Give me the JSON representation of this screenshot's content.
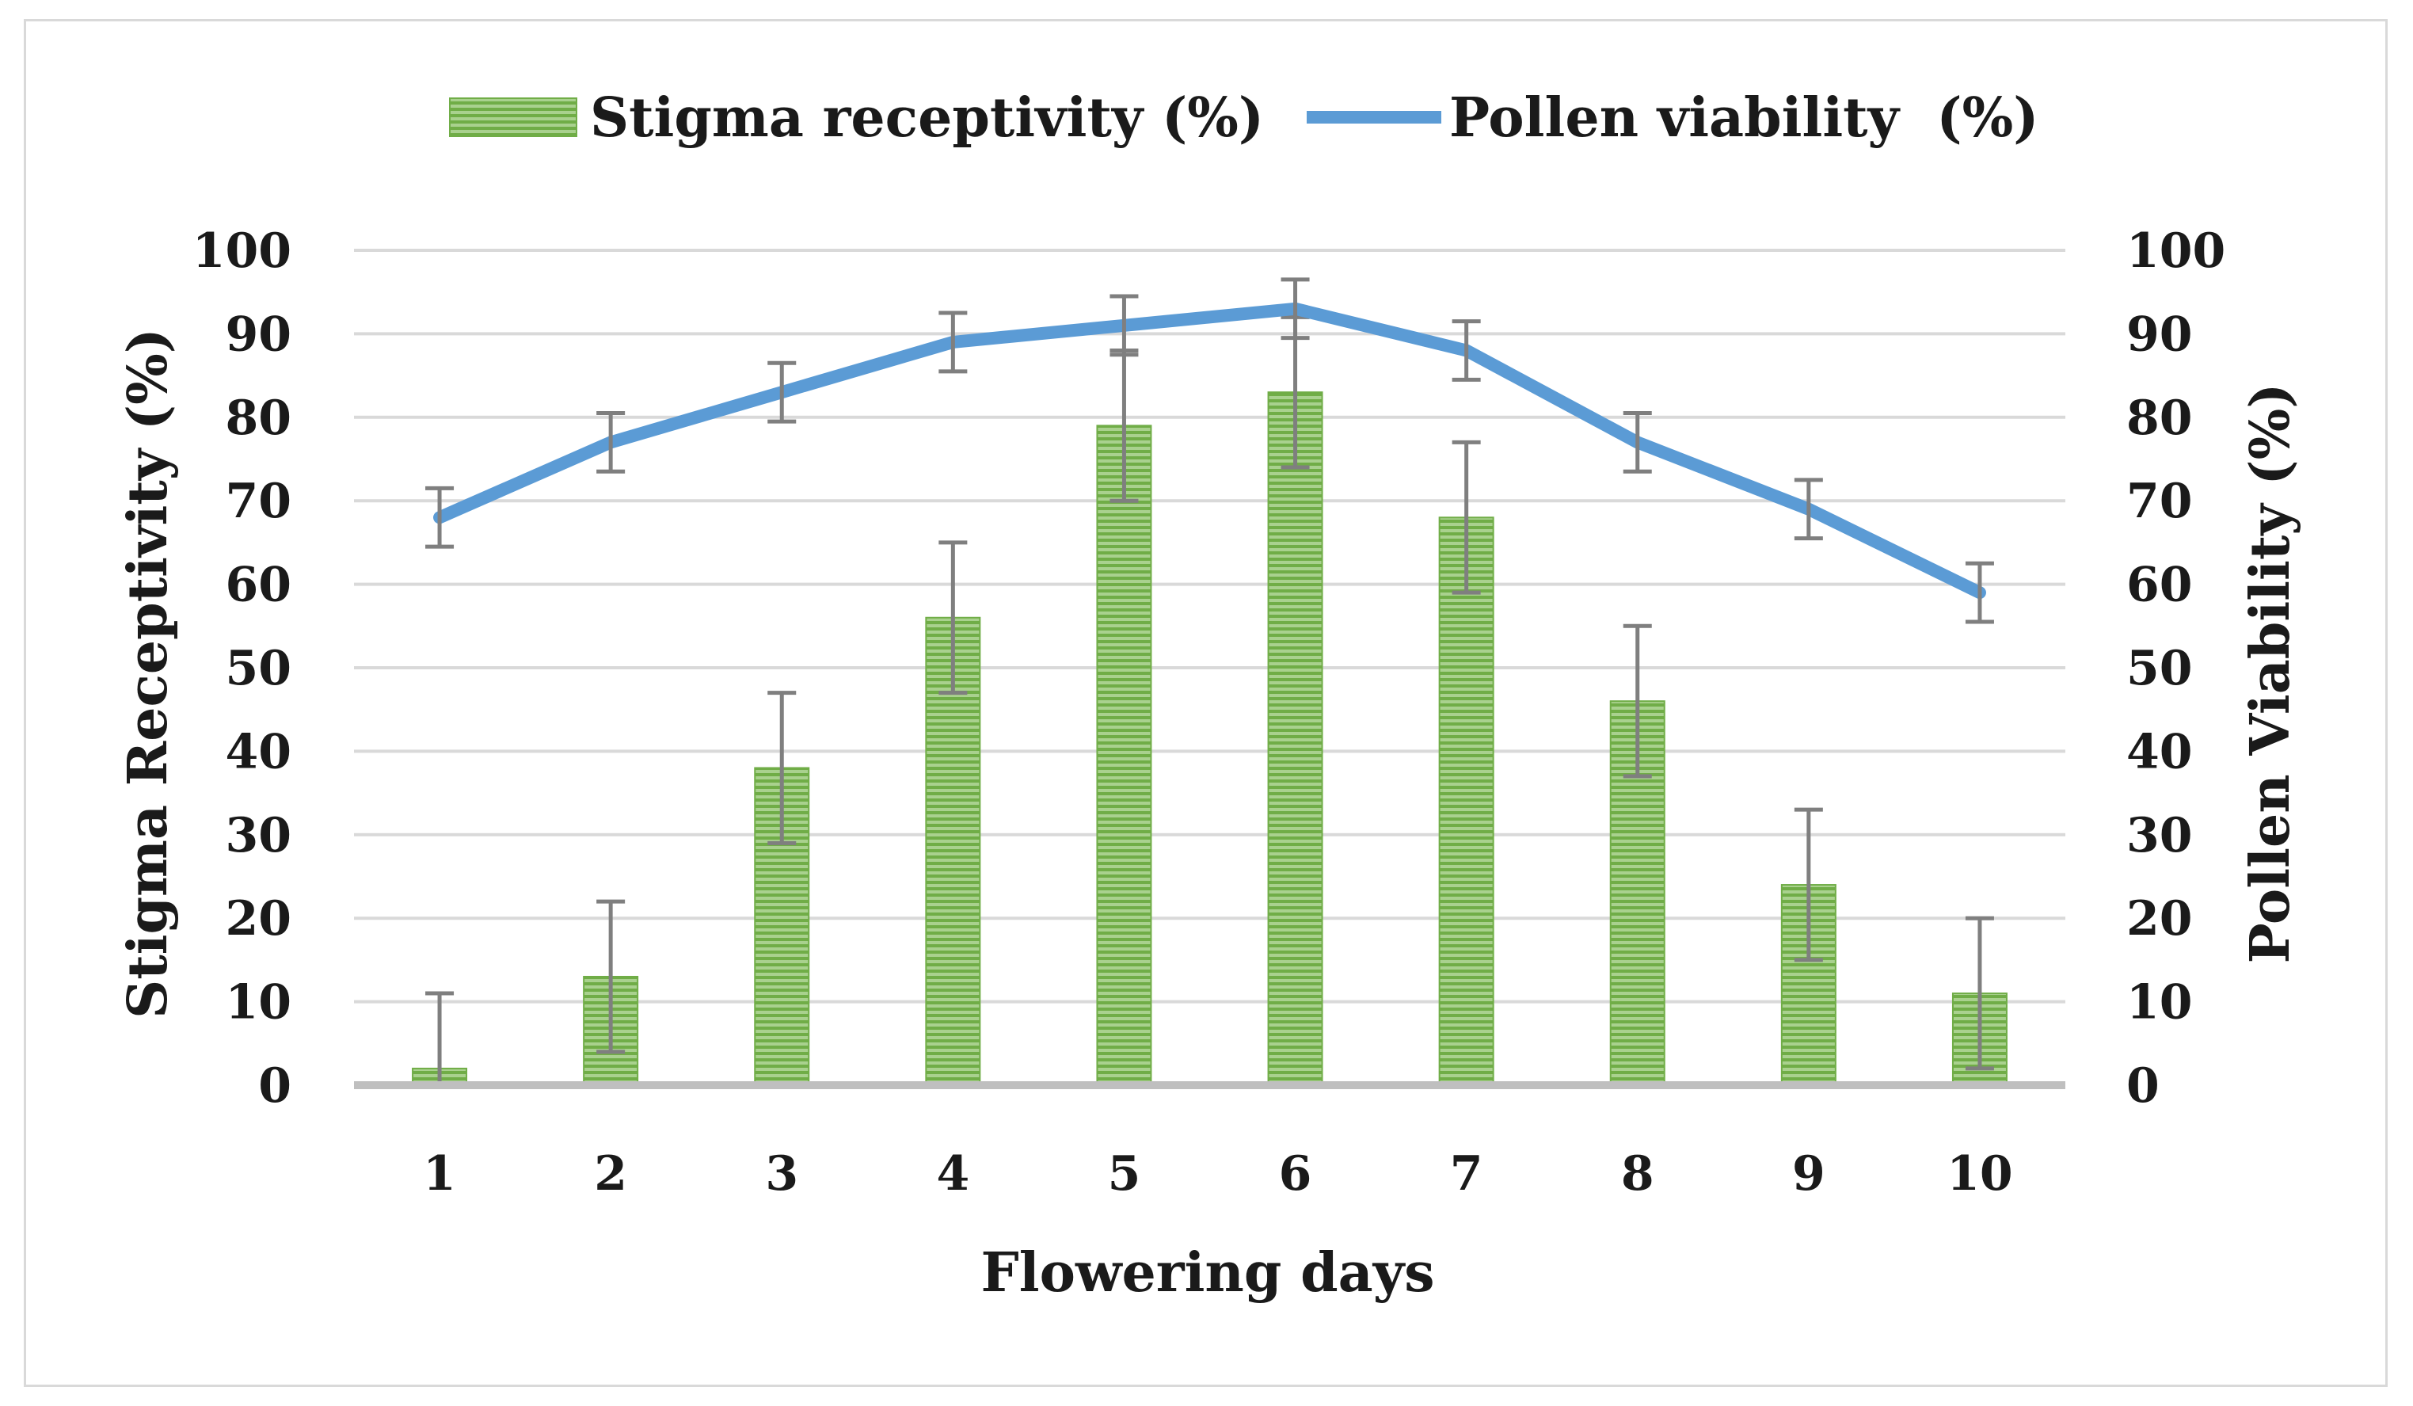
{
  "chart_data": {
    "type": "bar+line",
    "categories": [
      "1",
      "2",
      "3",
      "4",
      "5",
      "6",
      "7",
      "8",
      "9",
      "10"
    ],
    "series": [
      {
        "name": "Stigma receptivity (%)",
        "type": "bar",
        "axis": "left",
        "color": "#8cc152",
        "values": [
          2,
          13,
          38,
          56,
          79,
          83,
          68,
          46,
          24,
          11
        ],
        "error": [
          9,
          9,
          9,
          9,
          9,
          9,
          9,
          9,
          9,
          9
        ]
      },
      {
        "name": "Pollen viability  (%)",
        "type": "line",
        "axis": "right",
        "color": "#5b9bd5",
        "values": [
          68,
          77,
          83,
          89,
          91,
          93,
          88,
          77,
          69,
          59
        ],
        "error": [
          3.5,
          3.5,
          3.5,
          3.5,
          3.5,
          3.5,
          3.5,
          3.5,
          3.5,
          3.5
        ]
      }
    ],
    "xlabel": "Flowering days",
    "ylabel": "Stigma Receptivity (%)",
    "y2label": "Pollen Viability (%)",
    "ylim": [
      0,
      100
    ],
    "y2lim": [
      0,
      100
    ],
    "yticks": [
      0,
      10,
      20,
      30,
      40,
      50,
      60,
      70,
      80,
      90,
      100
    ],
    "grid": true,
    "legend_position": "top-center",
    "error_bar_color": "#7f7f7f",
    "grid_color": "#d9d9d9"
  }
}
